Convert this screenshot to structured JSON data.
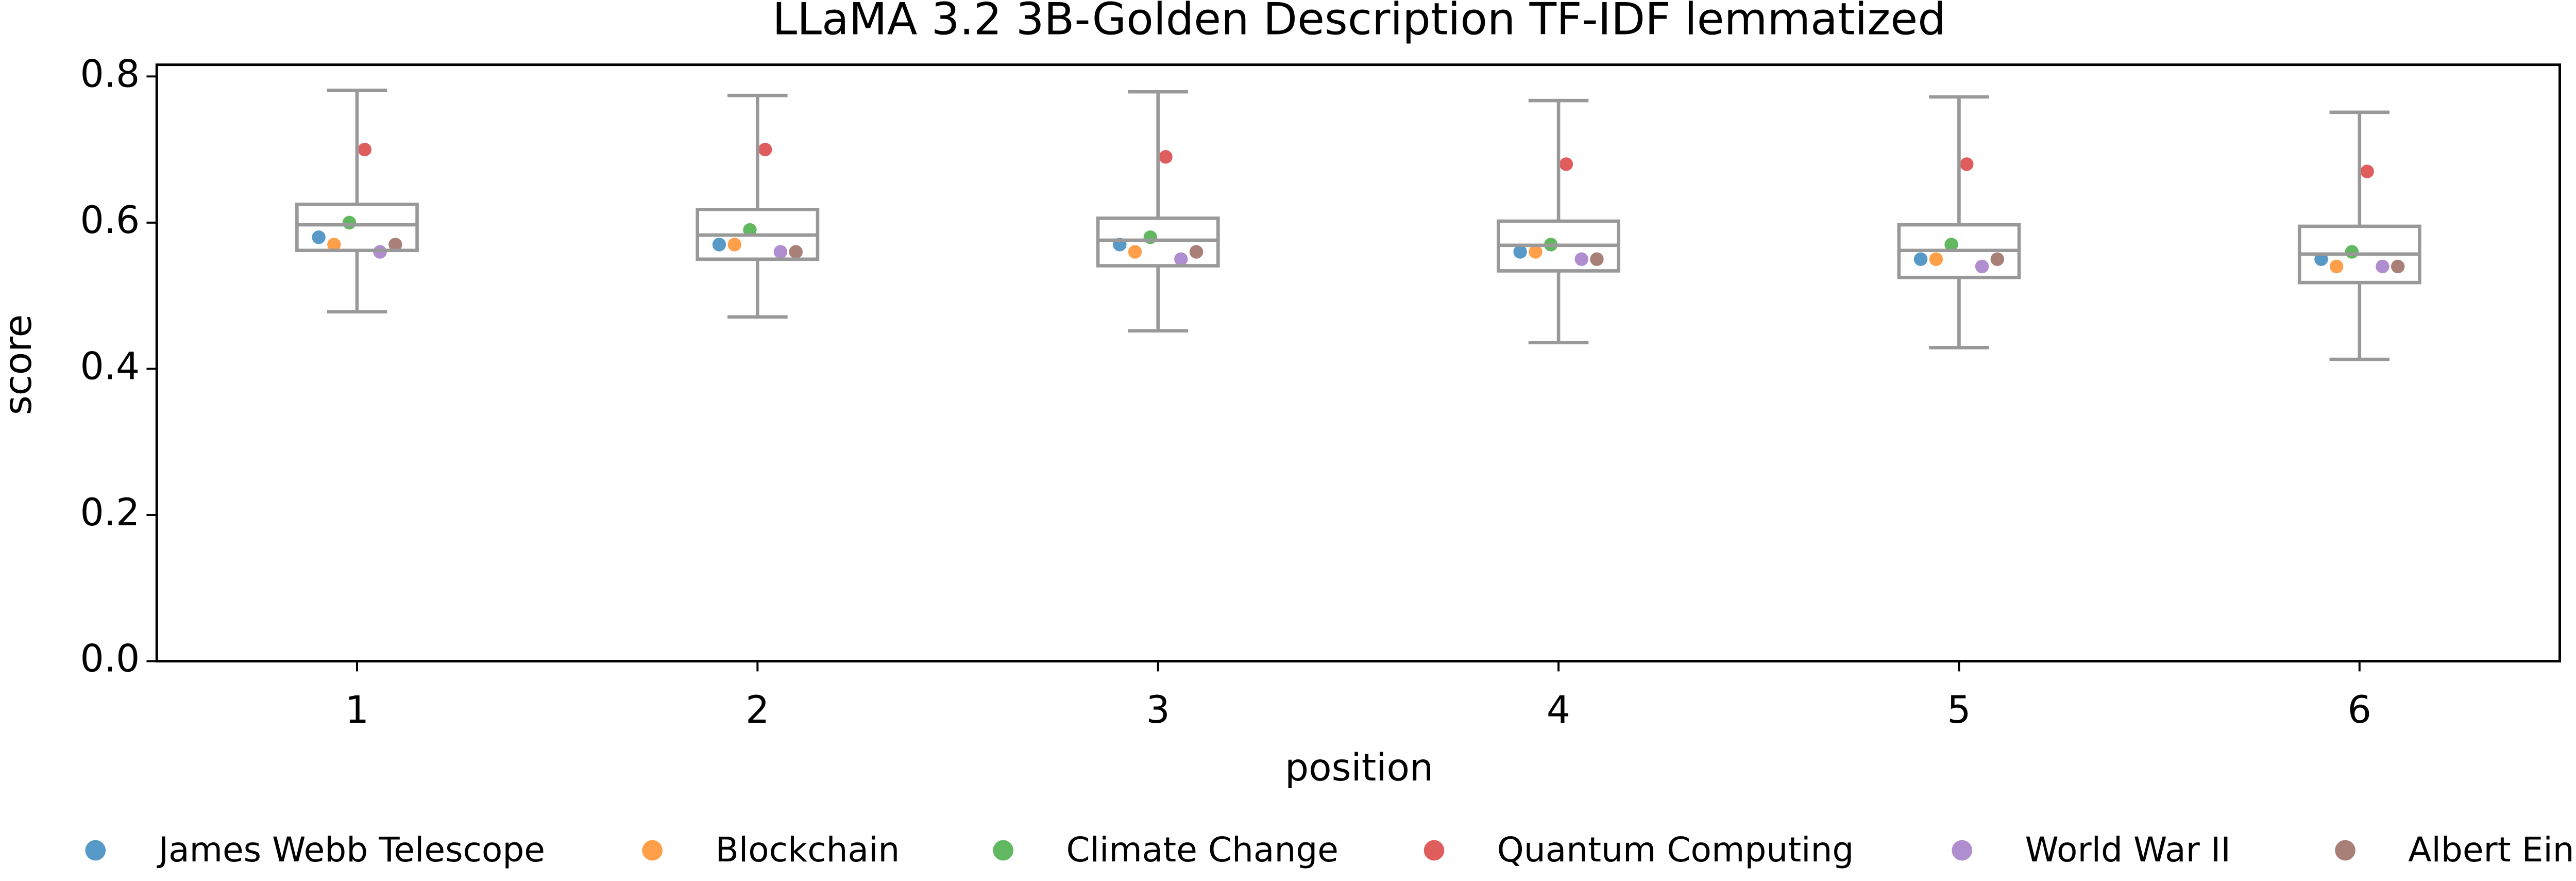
{
  "chart_data": {
    "type": "box",
    "title": "LLaMA 3.2 3B-Golden Description TF-IDF lemmatized",
    "xlabel": "position",
    "ylabel": "score",
    "categories": [
      "1",
      "2",
      "3",
      "4",
      "5",
      "6"
    ],
    "ylim": [
      0,
      0.816
    ],
    "yticks": [
      {
        "value": 0,
        "label": "0.0"
      },
      0.2,
      0.4,
      0.6,
      0.8
    ],
    "box_color": "#999999",
    "boxes": [
      {
        "whislo": 0.478,
        "q1": 0.562,
        "med": 0.597,
        "q3": 0.625,
        "whishi": 0.781
      },
      {
        "whislo": 0.471,
        "q1": 0.55,
        "med": 0.583,
        "q3": 0.618,
        "whishi": 0.774
      },
      {
        "whislo": 0.452,
        "q1": 0.541,
        "med": 0.576,
        "q3": 0.606,
        "whishi": 0.779
      },
      {
        "whislo": 0.436,
        "q1": 0.534,
        "med": 0.569,
        "q3": 0.602,
        "whishi": 0.767
      },
      {
        "whislo": 0.429,
        "q1": 0.525,
        "med": 0.562,
        "q3": 0.597,
        "whishi": 0.772
      },
      {
        "whislo": 0.413,
        "q1": 0.518,
        "med": 0.557,
        "q3": 0.595,
        "whishi": 0.751
      }
    ],
    "series": [
      {
        "name": "James Webb Telescope",
        "color": "#1f77b4",
        "values": [
          0.58,
          0.57,
          0.57,
          0.56,
          0.55,
          0.55
        ]
      },
      {
        "name": "Blockchain",
        "color": "#ff7f0e",
        "values": [
          0.57,
          0.57,
          0.56,
          0.56,
          0.55,
          0.54
        ]
      },
      {
        "name": "Climate Change",
        "color": "#2ca02c",
        "values": [
          0.6,
          0.59,
          0.58,
          0.57,
          0.57,
          0.56
        ]
      },
      {
        "name": "Quantum Computing",
        "color": "#d62728",
        "values": [
          0.7,
          0.7,
          0.69,
          0.68,
          0.68,
          0.67
        ]
      },
      {
        "name": "World War II",
        "color": "#9467bd",
        "values": [
          0.56,
          0.56,
          0.55,
          0.55,
          0.54,
          0.54
        ]
      },
      {
        "name": "Albert Einstein",
        "color": "#8c564b",
        "values": [
          0.57,
          0.56,
          0.56,
          0.55,
          0.55,
          0.54
        ]
      }
    ]
  }
}
